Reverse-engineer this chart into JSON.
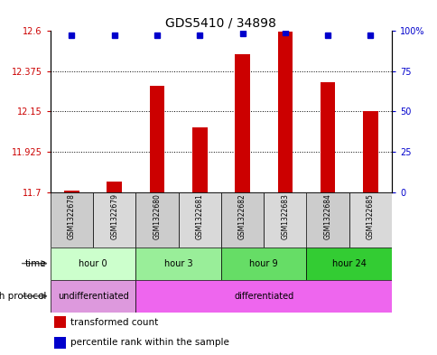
{
  "title": "GDS5410 / 34898",
  "samples": [
    "GSM1322678",
    "GSM1322679",
    "GSM1322680",
    "GSM1322681",
    "GSM1322682",
    "GSM1322683",
    "GSM1322684",
    "GSM1322685"
  ],
  "transformed_count": [
    11.71,
    11.76,
    12.29,
    12.06,
    12.47,
    12.595,
    12.31,
    12.15
  ],
  "percentile_rank": [
    97,
    97,
    97,
    97,
    98,
    99,
    97,
    97
  ],
  "ylim_left": [
    11.7,
    12.6
  ],
  "ylim_right": [
    0,
    100
  ],
  "yticks_left": [
    11.7,
    11.925,
    12.15,
    12.375,
    12.6
  ],
  "yticks_right": [
    0,
    25,
    50,
    75,
    100
  ],
  "bar_color": "#cc0000",
  "dot_color": "#0000cc",
  "time_groups": [
    {
      "label": "hour 0",
      "start": 0,
      "end": 2,
      "color": "#ccffcc"
    },
    {
      "label": "hour 3",
      "start": 2,
      "end": 4,
      "color": "#99ee99"
    },
    {
      "label": "hour 9",
      "start": 4,
      "end": 6,
      "color": "#66dd66"
    },
    {
      "label": "hour 24",
      "start": 6,
      "end": 8,
      "color": "#33cc33"
    }
  ],
  "growth_groups": [
    {
      "label": "undifferentiated",
      "start": 0,
      "end": 2,
      "color": "#dd99dd"
    },
    {
      "label": "differentiated",
      "start": 2,
      "end": 8,
      "color": "#ee66ee"
    }
  ],
  "legend_items": [
    {
      "color": "#cc0000",
      "label": "transformed count"
    },
    {
      "color": "#0000cc",
      "label": "percentile rank within the sample"
    }
  ],
  "xlabel_time": "time",
  "xlabel_growth": "growth protocol",
  "background_color": "#ffffff"
}
